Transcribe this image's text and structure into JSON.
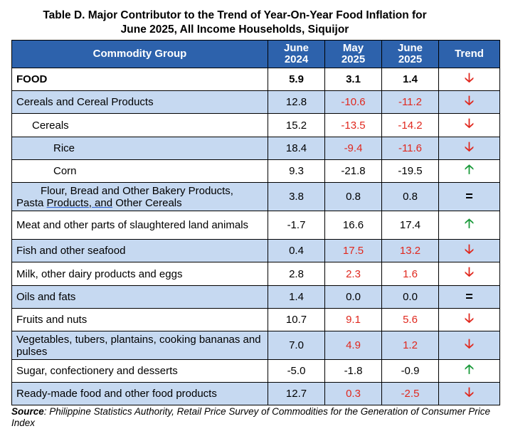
{
  "title_line1": "Table D. Major Contributor to the Trend of Year-On-Year Food Inflation for",
  "title_line2": "June 2025, All Income Households, Siquijor",
  "headers": {
    "commodity": "Commodity Group",
    "col1_a": "June",
    "col1_b": "2024",
    "col2_a": "May",
    "col2_b": "2025",
    "col3_a": "June",
    "col3_b": "2025",
    "trend": "Trend"
  },
  "rows": [
    {
      "name": "FOOD",
      "v1": "5.9",
      "v2": "3.1",
      "v3": "1.4",
      "trend": "down"
    },
    {
      "name": "Cereals and Cereal Products",
      "v1": "12.8",
      "v2": "-10.6",
      "v3": "-11.2",
      "trend": "down"
    },
    {
      "name": "Cereals",
      "v1": "15.2",
      "v2": "-13.5",
      "v3": "-14.2",
      "trend": "down"
    },
    {
      "name": "Rice",
      "v1": "18.4",
      "v2": "-9.4",
      "v3": "-11.6",
      "trend": "down"
    },
    {
      "name": "Corn",
      "v1": "9.3",
      "v2": "-21.8",
      "v3": "-19.5",
      "trend": "up"
    },
    {
      "name_a": "Flour, Bread and Other Bakery Products,",
      "name_b": "Pasta ",
      "name_c": "Products,  and",
      "name_d": " Other Cereals",
      "v1": "3.8",
      "v2": "0.8",
      "v3": "0.8",
      "trend": "equal"
    },
    {
      "name": "Meat and other parts of slaughtered land animals",
      "v1": "-1.7",
      "v2": "16.6",
      "v3": "17.4",
      "trend": "up"
    },
    {
      "name": "Fish and other seafood",
      "v1": "0.4",
      "v2": "17.5",
      "v3": "13.2",
      "trend": "down"
    },
    {
      "name": "Milk, other dairy products and eggs",
      "v1": "2.8",
      "v2": "2.3",
      "v3": "1.6",
      "trend": "down"
    },
    {
      "name": "Oils and fats",
      "v1": "1.4",
      "v2": "0.0",
      "v3": "0.0",
      "trend": "equal"
    },
    {
      "name": "Fruits and nuts",
      "v1": "10.7",
      "v2": "9.1",
      "v3": "5.6",
      "trend": "down"
    },
    {
      "name": "Vegetables, tubers, plantains, cooking bananas and pulses",
      "v1": "7.0",
      "v2": "4.9",
      "v3": "1.2",
      "trend": "down"
    },
    {
      "name": "Sugar, confectionery and desserts",
      "v1": "-5.0",
      "v2": "-1.8",
      "v3": "-0.9",
      "trend": "up"
    },
    {
      "name": "Ready-made food and other food products",
      "v1": "12.7",
      "v2": "0.3",
      "v3": "-2.5",
      "trend": "down"
    }
  ],
  "trend_symbols": {
    "down": "🡣",
    "up": "🡡",
    "equal": "="
  },
  "colors": {
    "header_bg": "#2d62ac",
    "shaded_row": "#c6d9f1",
    "negative_red": "#e0281e",
    "up_green": "#1a9a3a"
  },
  "source_label": "Source",
  "source_text": ": Philippine Statistics Authority, Retail Price Survey of Commodities for the Generation of Consumer Price Index"
}
